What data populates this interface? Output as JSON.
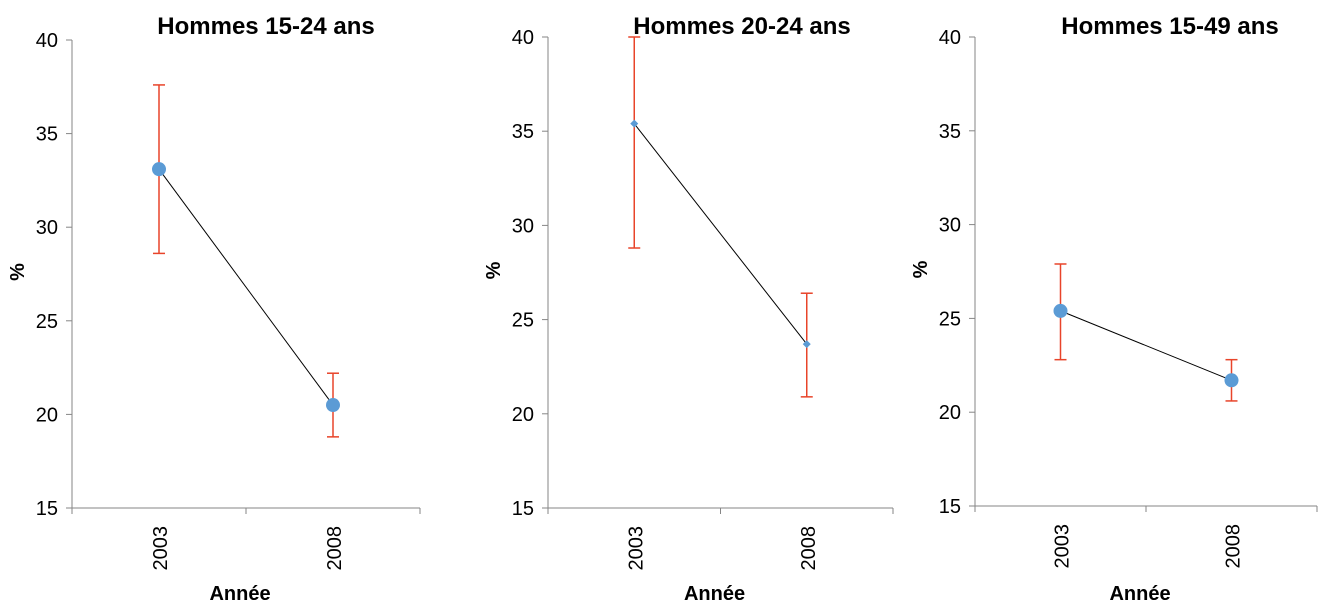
{
  "chart_data": [
    {
      "type": "line",
      "title": "Hommes 15-24 ans",
      "xlabel": "Année",
      "ylabel": "%",
      "categories": [
        "2003",
        "2008"
      ],
      "ylim": [
        15,
        40
      ],
      "yticks": [
        "15",
        "20",
        "25",
        "30",
        "35",
        "40"
      ],
      "grid": false,
      "series": [
        {
          "values": [
            33.1,
            20.5
          ],
          "error_low": [
            28.6,
            18.8
          ],
          "error_high": [
            37.6,
            22.2
          ]
        }
      ]
    },
    {
      "type": "line",
      "title": "Hommes 20-24 ans",
      "xlabel": "Année",
      "ylabel": "%",
      "categories": [
        "2003",
        "2008"
      ],
      "ylim": [
        15,
        40
      ],
      "yticks": [
        "15",
        "20",
        "25",
        "30",
        "35",
        "40"
      ],
      "grid": false,
      "series": [
        {
          "values": [
            35.4,
            23.7
          ],
          "error_low": [
            28.8,
            20.9
          ],
          "error_high": [
            40,
            26.4
          ]
        }
      ]
    },
    {
      "type": "line",
      "title": "Hommes 15-49 ans",
      "xlabel": "Année",
      "ylabel": "%",
      "categories": [
        "2003",
        "2008"
      ],
      "ylim": [
        15,
        40
      ],
      "yticks": [
        "15",
        "20",
        "25",
        "30",
        "35",
        "40"
      ],
      "grid": false,
      "series": [
        {
          "values": [
            25.4,
            21.7
          ],
          "error_low": [
            22.8,
            20.6
          ],
          "error_high": [
            27.9,
            22.8
          ]
        }
      ]
    }
  ],
  "colors": {
    "marker": "#5b9bd5",
    "error_bar": "#e8442a",
    "line": "#000000",
    "axis": "#868686"
  }
}
